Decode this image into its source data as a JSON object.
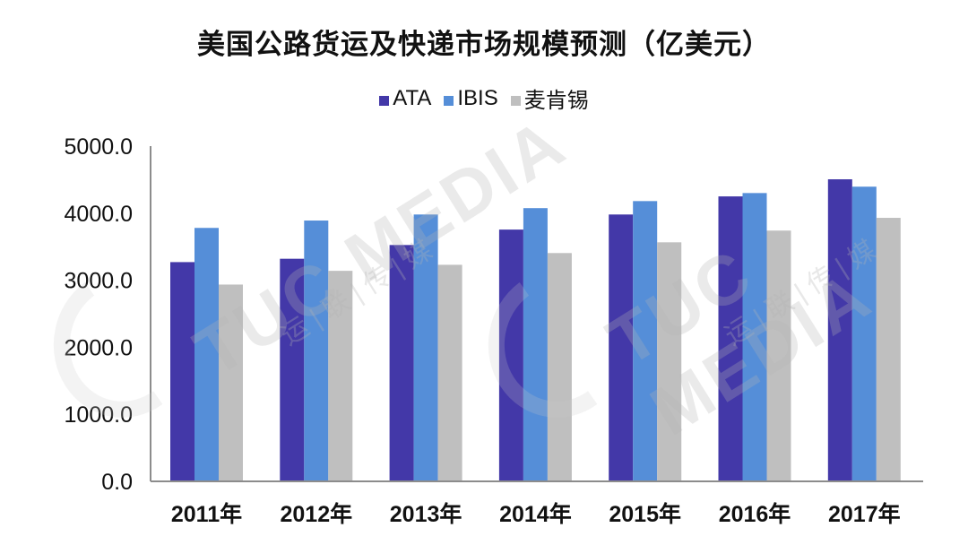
{
  "chart_data": {
    "type": "bar",
    "title": "美国公路货运及快递市场规模预测（亿美元）",
    "categories": [
      "2011年",
      "2012年",
      "2013年",
      "2014年",
      "2015年",
      "2016年",
      "2017年"
    ],
    "series": [
      {
        "name": "ATA",
        "color": "#4338a8",
        "values": [
          3270,
          3320,
          3525,
          3755,
          3980,
          4250,
          4505
        ]
      },
      {
        "name": "IBIS",
        "color": "#558ed8",
        "values": [
          3780,
          3890,
          3980,
          4075,
          4180,
          4300,
          4395
        ]
      },
      {
        "name": "麦肯锡",
        "color": "#bfbfbf",
        "values": [
          2935,
          3140,
          3230,
          3405,
          3565,
          3740,
          3930
        ]
      }
    ],
    "xlabel": "",
    "ylabel": "",
    "ylim": [
      0,
      5000
    ],
    "yticks": [
      "0.0",
      "1000.0",
      "2000.0",
      "3000.0",
      "4000.0",
      "5000.0"
    ],
    "grid": false,
    "legend_position": "top"
  },
  "watermark": {
    "text": "TUC MEDIA",
    "sub": "运|联|传|媒"
  }
}
